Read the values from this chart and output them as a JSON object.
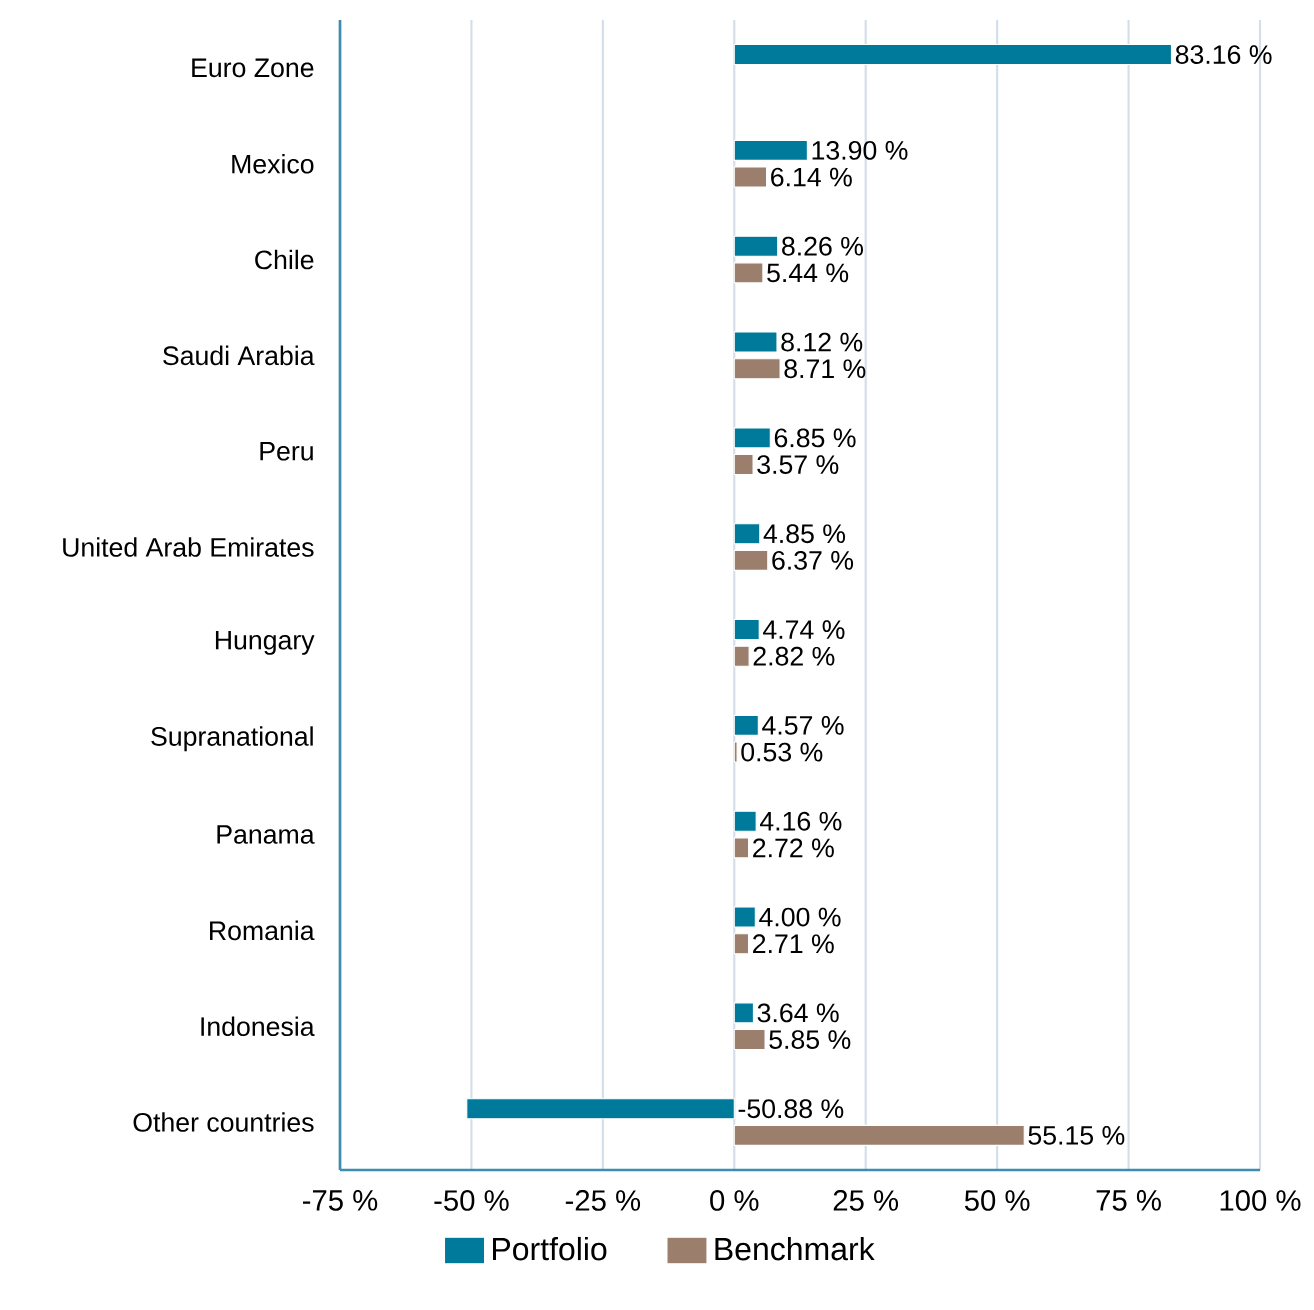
{
  "chart_data": {
    "type": "bar",
    "orientation": "horizontal",
    "categories": [
      "Euro Zone",
      "Mexico",
      "Chile",
      "Saudi Arabia",
      "Peru",
      "United Arab Emirates",
      "Hungary",
      "Supranational",
      "Panama",
      "Romania",
      "Indonesia",
      "Other countries"
    ],
    "series": [
      {
        "name": "Portfolio",
        "color": "#007a9a",
        "values": [
          83.16,
          13.9,
          8.26,
          8.12,
          6.85,
          4.85,
          4.74,
          4.57,
          4.16,
          4.0,
          3.64,
          -50.88
        ],
        "value_labels": [
          "83.16 %",
          "13.90 %",
          "8.26 %",
          "8.12 %",
          "6.85 %",
          "4.85 %",
          "4.74 %",
          "4.57 %",
          "4.16 %",
          "4.00 %",
          "3.64 %",
          "-50.88 %"
        ]
      },
      {
        "name": "Benchmark",
        "color": "#9b7f6c",
        "values": [
          null,
          6.14,
          5.44,
          8.71,
          3.57,
          6.37,
          2.82,
          0.53,
          2.72,
          2.71,
          5.85,
          55.15
        ],
        "value_labels": [
          null,
          "6.14 %",
          "5.44 %",
          "8.71 %",
          "3.57 %",
          "6.37 %",
          "2.82 %",
          "0.53 %",
          "2.72 %",
          "2.71 %",
          "5.85 %",
          "55.15 %"
        ]
      }
    ],
    "xlim": [
      -75,
      100
    ],
    "xticks": [
      {
        "value": -75,
        "label": "-75 %"
      },
      {
        "value": -50,
        "label": "-50 %"
      },
      {
        "value": -25,
        "label": "-25 %"
      },
      {
        "value": 0,
        "label": "0 %"
      },
      {
        "value": 25,
        "label": "25 %"
      },
      {
        "value": 50,
        "label": "50 %"
      },
      {
        "value": 75,
        "label": "75 %"
      },
      {
        "value": 100,
        "label": "100 %"
      }
    ],
    "grid": "x",
    "legend": "bottom"
  }
}
